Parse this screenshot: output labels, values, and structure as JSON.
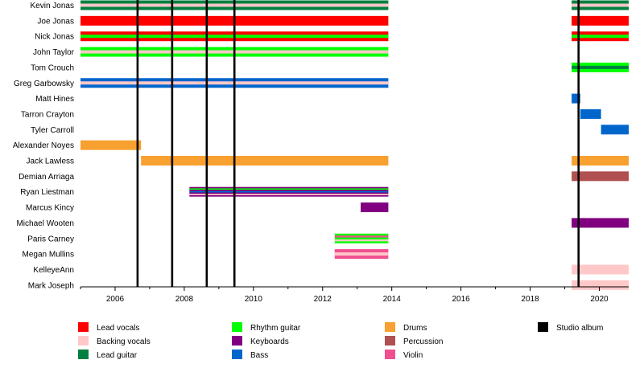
{
  "chart_data": {
    "type": "timeline",
    "title": "",
    "xlabel": "",
    "ylabel": "",
    "x_range": [
      2005,
      2020.85
    ],
    "x_ticks": [
      2006,
      2008,
      2010,
      2012,
      2014,
      2016,
      2018,
      2020
    ],
    "colors": {
      "lead_vocals": "#ff0000",
      "backing_vocals": "#ffc8c8",
      "lead_guitar": "#008040",
      "rhythm_guitar": "#00ff00",
      "keyboards": "#800080",
      "bass": "#0066cc",
      "drums": "#f8a030",
      "percussion": "#b05050",
      "violin": "#f05090",
      "studio_album": "#000000"
    },
    "members": [
      {
        "name": "Kevin Jonas",
        "periods": [
          {
            "start": 2005,
            "end": 2013.9,
            "roles": [
              "lead_guitar",
              "backing_vocals"
            ]
          },
          {
            "start": 2019.2,
            "end": 2020.85,
            "roles": [
              "lead_guitar",
              "backing_vocals"
            ]
          }
        ]
      },
      {
        "name": "Joe Jonas",
        "periods": [
          {
            "start": 2005,
            "end": 2013.9,
            "roles": [
              "lead_vocals"
            ]
          },
          {
            "start": 2019.2,
            "end": 2020.85,
            "roles": [
              "lead_vocals"
            ]
          }
        ]
      },
      {
        "name": "Nick Jonas",
        "periods": [
          {
            "start": 2005,
            "end": 2013.9,
            "roles": [
              "lead_vocals",
              "rhythm_guitar"
            ]
          },
          {
            "start": 2019.2,
            "end": 2020.85,
            "roles": [
              "lead_vocals",
              "rhythm_guitar"
            ]
          }
        ]
      },
      {
        "name": "John Taylor",
        "periods": [
          {
            "start": 2005,
            "end": 2013.9,
            "roles": [
              "rhythm_guitar",
              "backing_vocals"
            ]
          }
        ]
      },
      {
        "name": "Tom Crouch",
        "periods": [
          {
            "start": 2019.2,
            "end": 2020.85,
            "roles": [
              "rhythm_guitar",
              "lead_guitar"
            ]
          }
        ]
      },
      {
        "name": "Greg Garbowsky",
        "periods": [
          {
            "start": 2005,
            "end": 2013.9,
            "roles": [
              "bass",
              "backing_vocals"
            ]
          }
        ]
      },
      {
        "name": "Matt Hines",
        "periods": [
          {
            "start": 2019.2,
            "end": 2019.45,
            "roles": [
              "bass"
            ]
          }
        ]
      },
      {
        "name": "Tarron Crayton",
        "periods": [
          {
            "start": 2019.45,
            "end": 2020.05,
            "roles": [
              "bass"
            ]
          }
        ]
      },
      {
        "name": "Tyler Carroll",
        "periods": [
          {
            "start": 2020.05,
            "end": 2020.85,
            "roles": [
              "bass"
            ]
          }
        ]
      },
      {
        "name": "Alexander Noyes",
        "periods": [
          {
            "start": 2005,
            "end": 2006.75,
            "roles": [
              "drums"
            ]
          }
        ]
      },
      {
        "name": "Jack Lawless",
        "periods": [
          {
            "start": 2006.75,
            "end": 2013.9,
            "roles": [
              "drums"
            ]
          },
          {
            "start": 2019.2,
            "end": 2020.85,
            "roles": [
              "drums"
            ]
          }
        ]
      },
      {
        "name": "Demian Arriaga",
        "periods": [
          {
            "start": 2019.2,
            "end": 2020.85,
            "roles": [
              "percussion"
            ]
          }
        ]
      },
      {
        "name": "Ryan Liestman",
        "periods": [
          {
            "start": 2008.15,
            "end": 2013.9,
            "roles": [
              "keyboards",
              "rhythm_guitar",
              "bass",
              "backing_vocals"
            ]
          }
        ]
      },
      {
        "name": "Marcus Kincy",
        "periods": [
          {
            "start": 2013.1,
            "end": 2013.9,
            "roles": [
              "keyboards"
            ]
          }
        ]
      },
      {
        "name": "Michael Wooten",
        "periods": [
          {
            "start": 2019.2,
            "end": 2020.85,
            "roles": [
              "keyboards"
            ]
          }
        ]
      },
      {
        "name": "Paris Carney",
        "periods": [
          {
            "start": 2012.35,
            "end": 2013.9,
            "roles": [
              "rhythm_guitar",
              "violin",
              "backing_vocals"
            ]
          }
        ]
      },
      {
        "name": "Megan Mullins",
        "periods": [
          {
            "start": 2012.35,
            "end": 2013.9,
            "roles": [
              "violin",
              "backing_vocals"
            ]
          }
        ]
      },
      {
        "name": "KelleyeAnn",
        "periods": [
          {
            "start": 2019.2,
            "end": 2020.85,
            "roles": [
              "backing_vocals"
            ]
          }
        ]
      },
      {
        "name": "Mark Joseph",
        "periods": [
          {
            "start": 2019.2,
            "end": 2020.85,
            "roles": [
              "backing_vocals"
            ]
          }
        ]
      }
    ],
    "studio_albums": [
      2006.65,
      2007.65,
      2008.65,
      2009.45,
      2019.4
    ],
    "legend": [
      {
        "key": "lead_vocals",
        "label": "Lead vocals"
      },
      {
        "key": "backing_vocals",
        "label": "Backing vocals"
      },
      {
        "key": "lead_guitar",
        "label": "Lead guitar"
      },
      {
        "key": "rhythm_guitar",
        "label": "Rhythm guitar"
      },
      {
        "key": "keyboards",
        "label": "Keyboards"
      },
      {
        "key": "bass",
        "label": "Bass"
      },
      {
        "key": "drums",
        "label": "Drums"
      },
      {
        "key": "percussion",
        "label": "Percussion"
      },
      {
        "key": "violin",
        "label": "Violin"
      },
      {
        "key": "studio_album",
        "label": "Studio album"
      }
    ]
  }
}
